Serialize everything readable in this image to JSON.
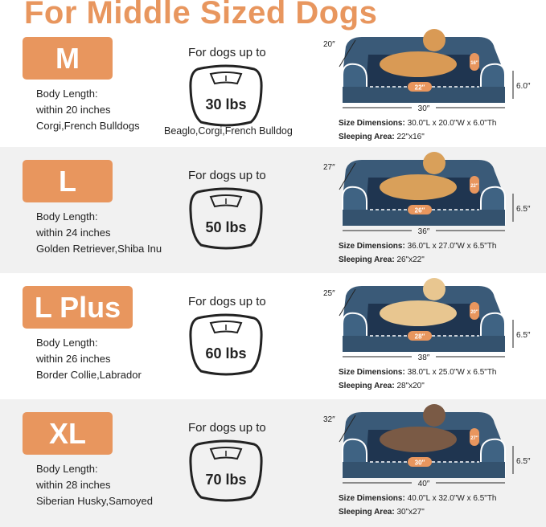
{
  "title": "For Middle Sized Dogs",
  "colors": {
    "accent": "#e8965e",
    "bed": "#3a5a78",
    "gray_row": "#f1f1f1"
  },
  "sizes": [
    {
      "size": "M",
      "body_label": "Body Length:",
      "body_value": "within 20 inches",
      "breeds": "Corgi,French Bulldogs",
      "up_to": "For dogs up to",
      "weight": "30 lbs",
      "extra_breeds": "Beaglo,Corgi,French Bulldog",
      "width_label": "20″",
      "length_label": "30″",
      "height_label": "6.0″",
      "sleep_l": "22″",
      "sleep_w": "16″",
      "dims_label": "Size Dimensions:",
      "dims_value": "30.0\"L x 20.0\"W x 6.0\"Th",
      "sleep_label": "Sleeping Area:",
      "sleep_value": "22\"x16\""
    },
    {
      "size": "L",
      "body_label": "Body Length:",
      "body_value": "within 24 inches",
      "breeds": "Golden Retriever,Shiba Inu",
      "up_to": "For dogs up to",
      "weight": "50 lbs",
      "width_label": "27″",
      "length_label": "36″",
      "height_label": "6.5″",
      "sleep_l": "26″",
      "sleep_w": "22″",
      "dims_label": "Size Dimensions:",
      "dims_value": "36.0\"L x 27.0\"W x 6.5\"Th",
      "sleep_label": "Sleeping Area:",
      "sleep_value": "26\"x22\""
    },
    {
      "size": "L Plus",
      "body_label": "Body Length:",
      "body_value": "within 26 inches",
      "breeds": "Border Collie,Labrador",
      "up_to": "For dogs up to",
      "weight": "60 lbs",
      "width_label": "25″",
      "length_label": "38″",
      "height_label": "6.5″",
      "sleep_l": "28″",
      "sleep_w": "20″",
      "dims_label": "Size Dimensions:",
      "dims_value": "38.0\"L x 25.0\"W x 6.5\"Th",
      "sleep_label": "Sleeping Area:",
      "sleep_value": "28\"x20\""
    },
    {
      "size": "XL",
      "body_label": "Body Length:",
      "body_value": "within 28 inches",
      "breeds": "Siberian Husky,Samoyed",
      "up_to": "For dogs up to",
      "weight": "70 lbs",
      "width_label": "32″",
      "length_label": "40″",
      "height_label": "6.5″",
      "sleep_l": "30″",
      "sleep_w": "27″",
      "dims_label": "Size Dimensions:",
      "dims_value": "40.0\"L x 32.0\"W x 6.5\"Th",
      "sleep_label": "Sleeping Area:",
      "sleep_value": "30\"x27\""
    }
  ]
}
